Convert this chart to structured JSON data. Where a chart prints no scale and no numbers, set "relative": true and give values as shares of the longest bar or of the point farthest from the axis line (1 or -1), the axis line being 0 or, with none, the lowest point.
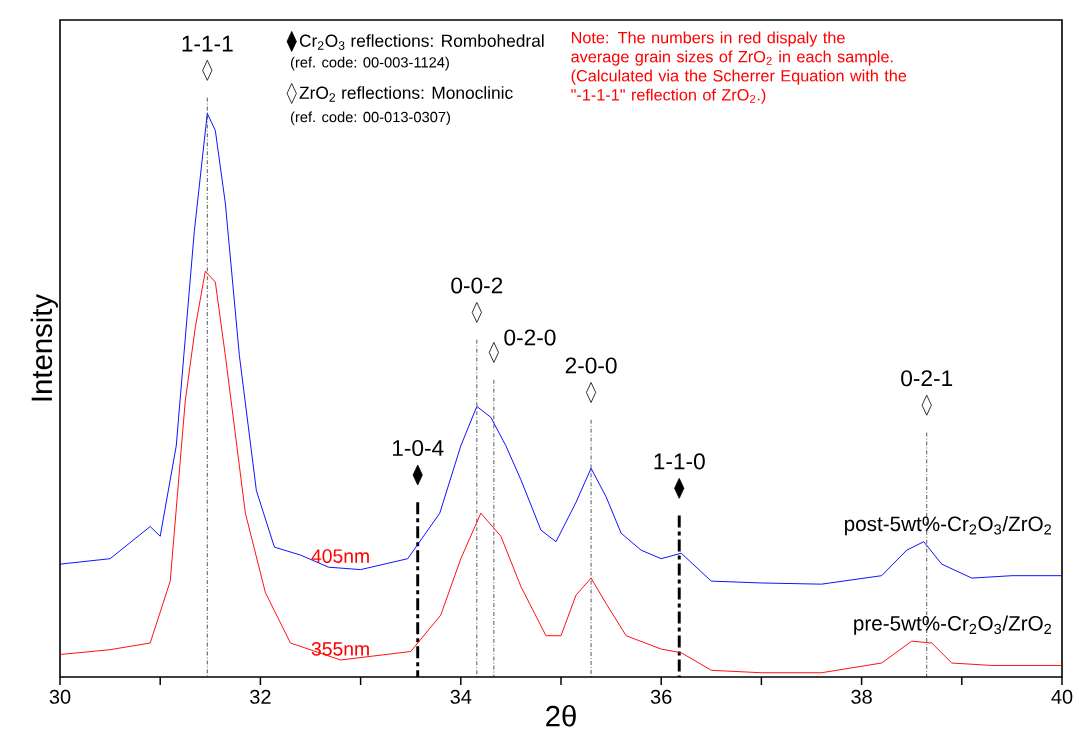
{
  "chart_data": {
    "type": "line",
    "relative": true,
    "marker": "none",
    "legend": "top",
    "xlabel": "2θ",
    "ylabel": "Intensity",
    "xlim": [
      30,
      40
    ],
    "xticks": [
      30,
      {
        "value": 31,
        "label": null
      },
      32,
      {
        "value": 33,
        "label": null
      },
      34,
      {
        "value": 35,
        "label": null
      },
      36,
      {
        "value": 37,
        "label": null
      },
      38,
      {
        "value": 39,
        "label": null
      },
      40
    ],
    "series": [
      {
        "name": "post-5wt%-Cr$_{2}$O$_{3}$/ZrO$_{2}$",
        "color": "#0000ff",
        "x": [
          30,
          30.5,
          30.9,
          31.0,
          31.16,
          31.25,
          31.34,
          31.47,
          31.55,
          31.65,
          31.79,
          31.96,
          32.14,
          32.4,
          32.68,
          33.0,
          33.47,
          33.79,
          34.0,
          34.16,
          34.3,
          34.45,
          34.6,
          34.8,
          34.95,
          35.15,
          35.3,
          35.45,
          35.6,
          35.8,
          36.0,
          36.2,
          36.5,
          37.0,
          37.6,
          38.2,
          38.45,
          38.62,
          38.8,
          39.1,
          39.5,
          40
        ],
        "values": [
          0.186,
          0.195,
          0.248,
          0.232,
          0.381,
          0.558,
          0.734,
          0.929,
          0.901,
          0.781,
          0.53,
          0.307,
          0.214,
          0.201,
          0.181,
          0.177,
          0.195,
          0.27,
          0.381,
          0.446,
          0.428,
          0.381,
          0.325,
          0.242,
          0.223,
          0.288,
          0.344,
          0.297,
          0.237,
          0.209,
          0.195,
          0.204,
          0.158,
          0.155,
          0.153,
          0.167,
          0.209,
          0.223,
          0.186,
          0.163,
          0.167,
          0.167
        ]
      },
      {
        "name": "pre-5wt%-Cr$_{2}$O$_{3}$/ZrO$_{2}$",
        "color": "#ff0000",
        "x": [
          30,
          30.5,
          30.9,
          31.1,
          31.25,
          31.35,
          31.45,
          31.55,
          31.65,
          31.85,
          32.05,
          32.3,
          32.8,
          33.5,
          33.8,
          34.0,
          34.2,
          34.4,
          34.6,
          34.85,
          35.0,
          35.15,
          35.3,
          35.45,
          35.65,
          36.0,
          36.2,
          36.5,
          37.0,
          37.6,
          38.2,
          38.5,
          38.7,
          38.9,
          39.3,
          40
        ],
        "values": [
          0.037,
          0.045,
          0.056,
          0.158,
          0.455,
          0.576,
          0.669,
          0.651,
          0.53,
          0.27,
          0.139,
          0.056,
          0.028,
          0.042,
          0.102,
          0.195,
          0.27,
          0.232,
          0.149,
          0.068,
          0.068,
          0.135,
          0.163,
          0.121,
          0.068,
          0.046,
          0.04,
          0.011,
          0.007,
          0.007,
          0.023,
          0.059,
          0.056,
          0.023,
          0.019,
          0.019
        ]
      },
      {
        "name": "Cr$_{2}$O$_{3}$ reflections: Rombohedral",
        "type": "scatter",
        "marker": "diamond",
        "color": "#000000",
        "x": [
          33.57,
          36.18
        ],
        "values": [
          0.333,
          0.311
        ]
      },
      {
        "name": "ZrO$_{2}$ reflections: Monoclinic",
        "type": "scatter",
        "marker": "diamond",
        "color": "#ffffff",
        "x": [
          31.47,
          34.16,
          34.33,
          35.3,
          38.65
        ],
        "values": [
          1.0,
          0.601,
          0.535,
          0.469,
          0.448
        ]
      }
    ],
    "ref_lines": [
      {
        "axis": "x",
        "value": 31.47,
        "line_style": "dashdot"
      },
      {
        "axis": "x",
        "value": 33.57,
        "line_style": "thick dashdot"
      },
      {
        "axis": "x",
        "value": 34.16,
        "line_style": "dashdot"
      },
      {
        "axis": "x",
        "value": 34.33,
        "line_style": "dashdot"
      },
      {
        "axis": "x",
        "value": 35.3,
        "line_style": "dashdot"
      },
      {
        "axis": "x",
        "value": 36.18,
        "line_style": "thick dashdot"
      },
      {
        "axis": "x",
        "value": 38.65,
        "line_style": "dashdot"
      }
    ],
    "annotations": [
      "(ref. code: 00-003-1124)",
      "(ref. code: 00-013-0307)",
      "Note: The numbers in red dispaly the average grain sizes of ZrO$_{2}$ in each sample. (Calculated via the Scherrer Equation with the \"-1-1-1\" reflection of ZrO$_{2}$.)",
      {
        "text": "1-1-1",
        "x": 31.47,
        "y": 1.0
      },
      {
        "text": "1-0-4",
        "x": 33.57,
        "y": 0.333
      },
      {
        "text": "0-0-2",
        "x": 34.16,
        "y": 0.601
      },
      {
        "text": "0-2-0",
        "x": 34.33,
        "y": 0.535
      },
      {
        "text": "2-0-0",
        "x": 35.3,
        "y": 0.469
      },
      {
        "text": "1-1-0",
        "x": 36.18,
        "y": 0.311
      },
      {
        "text": "0-2-1",
        "x": 38.65,
        "y": 0.448
      },
      {
        "text": "405nm",
        "x": 32.8,
        "y": 0.181
      },
      {
        "text": "355nm",
        "x": 32.8,
        "y": 0.028
      }
    ]
  }
}
